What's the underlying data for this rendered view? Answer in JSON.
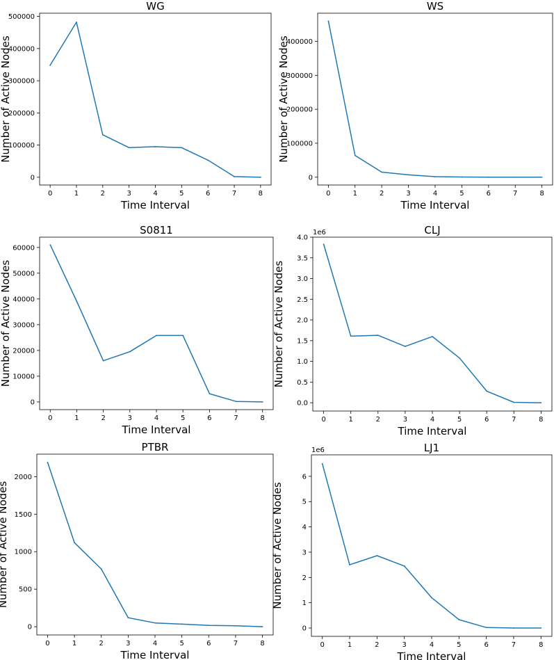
{
  "chart_data": [
    {
      "type": "line",
      "title": "WG",
      "xlabel": "Time Interval",
      "ylabel": "Number of Active Nodes",
      "x": [
        0,
        1,
        2,
        3,
        4,
        5,
        6,
        7,
        8
      ],
      "series": [
        {
          "name": "WG",
          "values": [
            348000,
            482000,
            132000,
            92000,
            95000,
            92000,
            53000,
            2000,
            0
          ]
        }
      ],
      "xticks": [
        0,
        1,
        2,
        3,
        4,
        5,
        6,
        7,
        8
      ],
      "yticks": [
        0,
        100000,
        200000,
        300000,
        400000,
        500000
      ],
      "ytick_labels": [
        "0",
        "100000",
        "200000",
        "300000",
        "400000",
        "500000"
      ],
      "ylim": [
        -24100,
        510000
      ],
      "xlim": [
        -0.4,
        8.4
      ],
      "offset_label": "",
      "color": "#1f77b4"
    },
    {
      "type": "line",
      "title": "WS",
      "xlabel": "Time Interval",
      "ylabel": "Number of Active Nodes",
      "x": [
        0,
        1,
        2,
        3,
        4,
        5,
        6,
        7,
        8
      ],
      "series": [
        {
          "name": "WS",
          "values": [
            460000,
            64000,
            15000,
            7000,
            1500,
            500,
            200,
            100,
            0
          ]
        }
      ],
      "xticks": [
        0,
        1,
        2,
        3,
        4,
        5,
        6,
        7,
        8
      ],
      "yticks": [
        0,
        100000,
        200000,
        300000,
        400000
      ],
      "ytick_labels": [
        "0",
        "100000",
        "200000",
        "300000",
        "400000"
      ],
      "ylim": [
        -23000,
        483000
      ],
      "xlim": [
        -0.4,
        8.4
      ],
      "offset_label": "",
      "color": "#1f77b4"
    },
    {
      "type": "line",
      "title": "S0811",
      "xlabel": "Time Interval",
      "ylabel": "Number of Active Nodes",
      "x": [
        0,
        1,
        2,
        3,
        4,
        5,
        6,
        7,
        8
      ],
      "series": [
        {
          "name": "S0811",
          "values": [
            61000,
            39000,
            16000,
            19500,
            25800,
            25800,
            3200,
            200,
            0
          ]
        }
      ],
      "xticks": [
        0,
        1,
        2,
        3,
        4,
        5,
        6,
        7,
        8
      ],
      "yticks": [
        0,
        10000,
        20000,
        30000,
        40000,
        50000,
        60000
      ],
      "ytick_labels": [
        "0",
        "10000",
        "20000",
        "30000",
        "40000",
        "50000",
        "60000"
      ],
      "ylim": [
        -3000,
        64000
      ],
      "xlim": [
        -0.4,
        8.4
      ],
      "offset_label": "",
      "color": "#1f77b4"
    },
    {
      "type": "line",
      "title": "CLJ",
      "xlabel": "Time Interval",
      "ylabel": "Number of Active Nodes",
      "x": [
        0,
        1,
        2,
        3,
        4,
        5,
        6,
        7,
        8
      ],
      "series": [
        {
          "name": "CLJ",
          "values": [
            3.83,
            1.61,
            1.63,
            1.36,
            1.6,
            1.08,
            0.28,
            0.01,
            0
          ]
        }
      ],
      "xticks": [
        0,
        1,
        2,
        3,
        4,
        5,
        6,
        7,
        8
      ],
      "yticks": [
        0,
        0.5,
        1.0,
        1.5,
        2.0,
        2.5,
        3.0,
        3.5,
        4.0
      ],
      "ytick_labels": [
        "0.0",
        "0.5",
        "1.0",
        "1.5",
        "2.0",
        "2.5",
        "3.0",
        "3.5",
        "4.0"
      ],
      "ylim": [
        -0.2,
        4.0
      ],
      "xlim": [
        -0.4,
        8.4
      ],
      "offset_label": "1e6",
      "color": "#1f77b4"
    },
    {
      "type": "line",
      "title": "PTBR",
      "xlabel": "Time Interval",
      "ylabel": "Number of Active Nodes",
      "x": [
        0,
        1,
        2,
        3,
        4,
        5,
        6,
        7,
        8
      ],
      "series": [
        {
          "name": "PTBR",
          "values": [
            2190,
            1120,
            770,
            120,
            50,
            35,
            18,
            12,
            0
          ]
        }
      ],
      "xticks": [
        0,
        1,
        2,
        3,
        4,
        5,
        6,
        7,
        8
      ],
      "yticks": [
        0,
        500,
        1000,
        1500,
        2000
      ],
      "ytick_labels": [
        "0",
        "500",
        "1000",
        "1500",
        "2000"
      ],
      "ylim": [
        -110,
        2300
      ],
      "xlim": [
        -0.4,
        8.4
      ],
      "offset_label": "",
      "color": "#1f77b4"
    },
    {
      "type": "line",
      "title": "LJ1",
      "xlabel": "Time Interval",
      "ylabel": "Number of Active Nodes",
      "x": [
        0,
        1,
        2,
        3,
        4,
        5,
        6,
        7,
        8
      ],
      "series": [
        {
          "name": "LJ1",
          "values": [
            6.5,
            2.5,
            2.86,
            2.45,
            1.2,
            0.33,
            0.02,
            0.0,
            0
          ]
        }
      ],
      "xticks": [
        0,
        1,
        2,
        3,
        4,
        5,
        6,
        7,
        8
      ],
      "yticks": [
        0,
        1,
        2,
        3,
        4,
        5,
        6
      ],
      "ytick_labels": [
        "0",
        "1",
        "2",
        "3",
        "4",
        "5",
        "6"
      ],
      "ylim": [
        -0.33,
        6.85
      ],
      "xlim": [
        -0.4,
        8.4
      ],
      "offset_label": "1e6",
      "color": "#1f77b4"
    }
  ]
}
